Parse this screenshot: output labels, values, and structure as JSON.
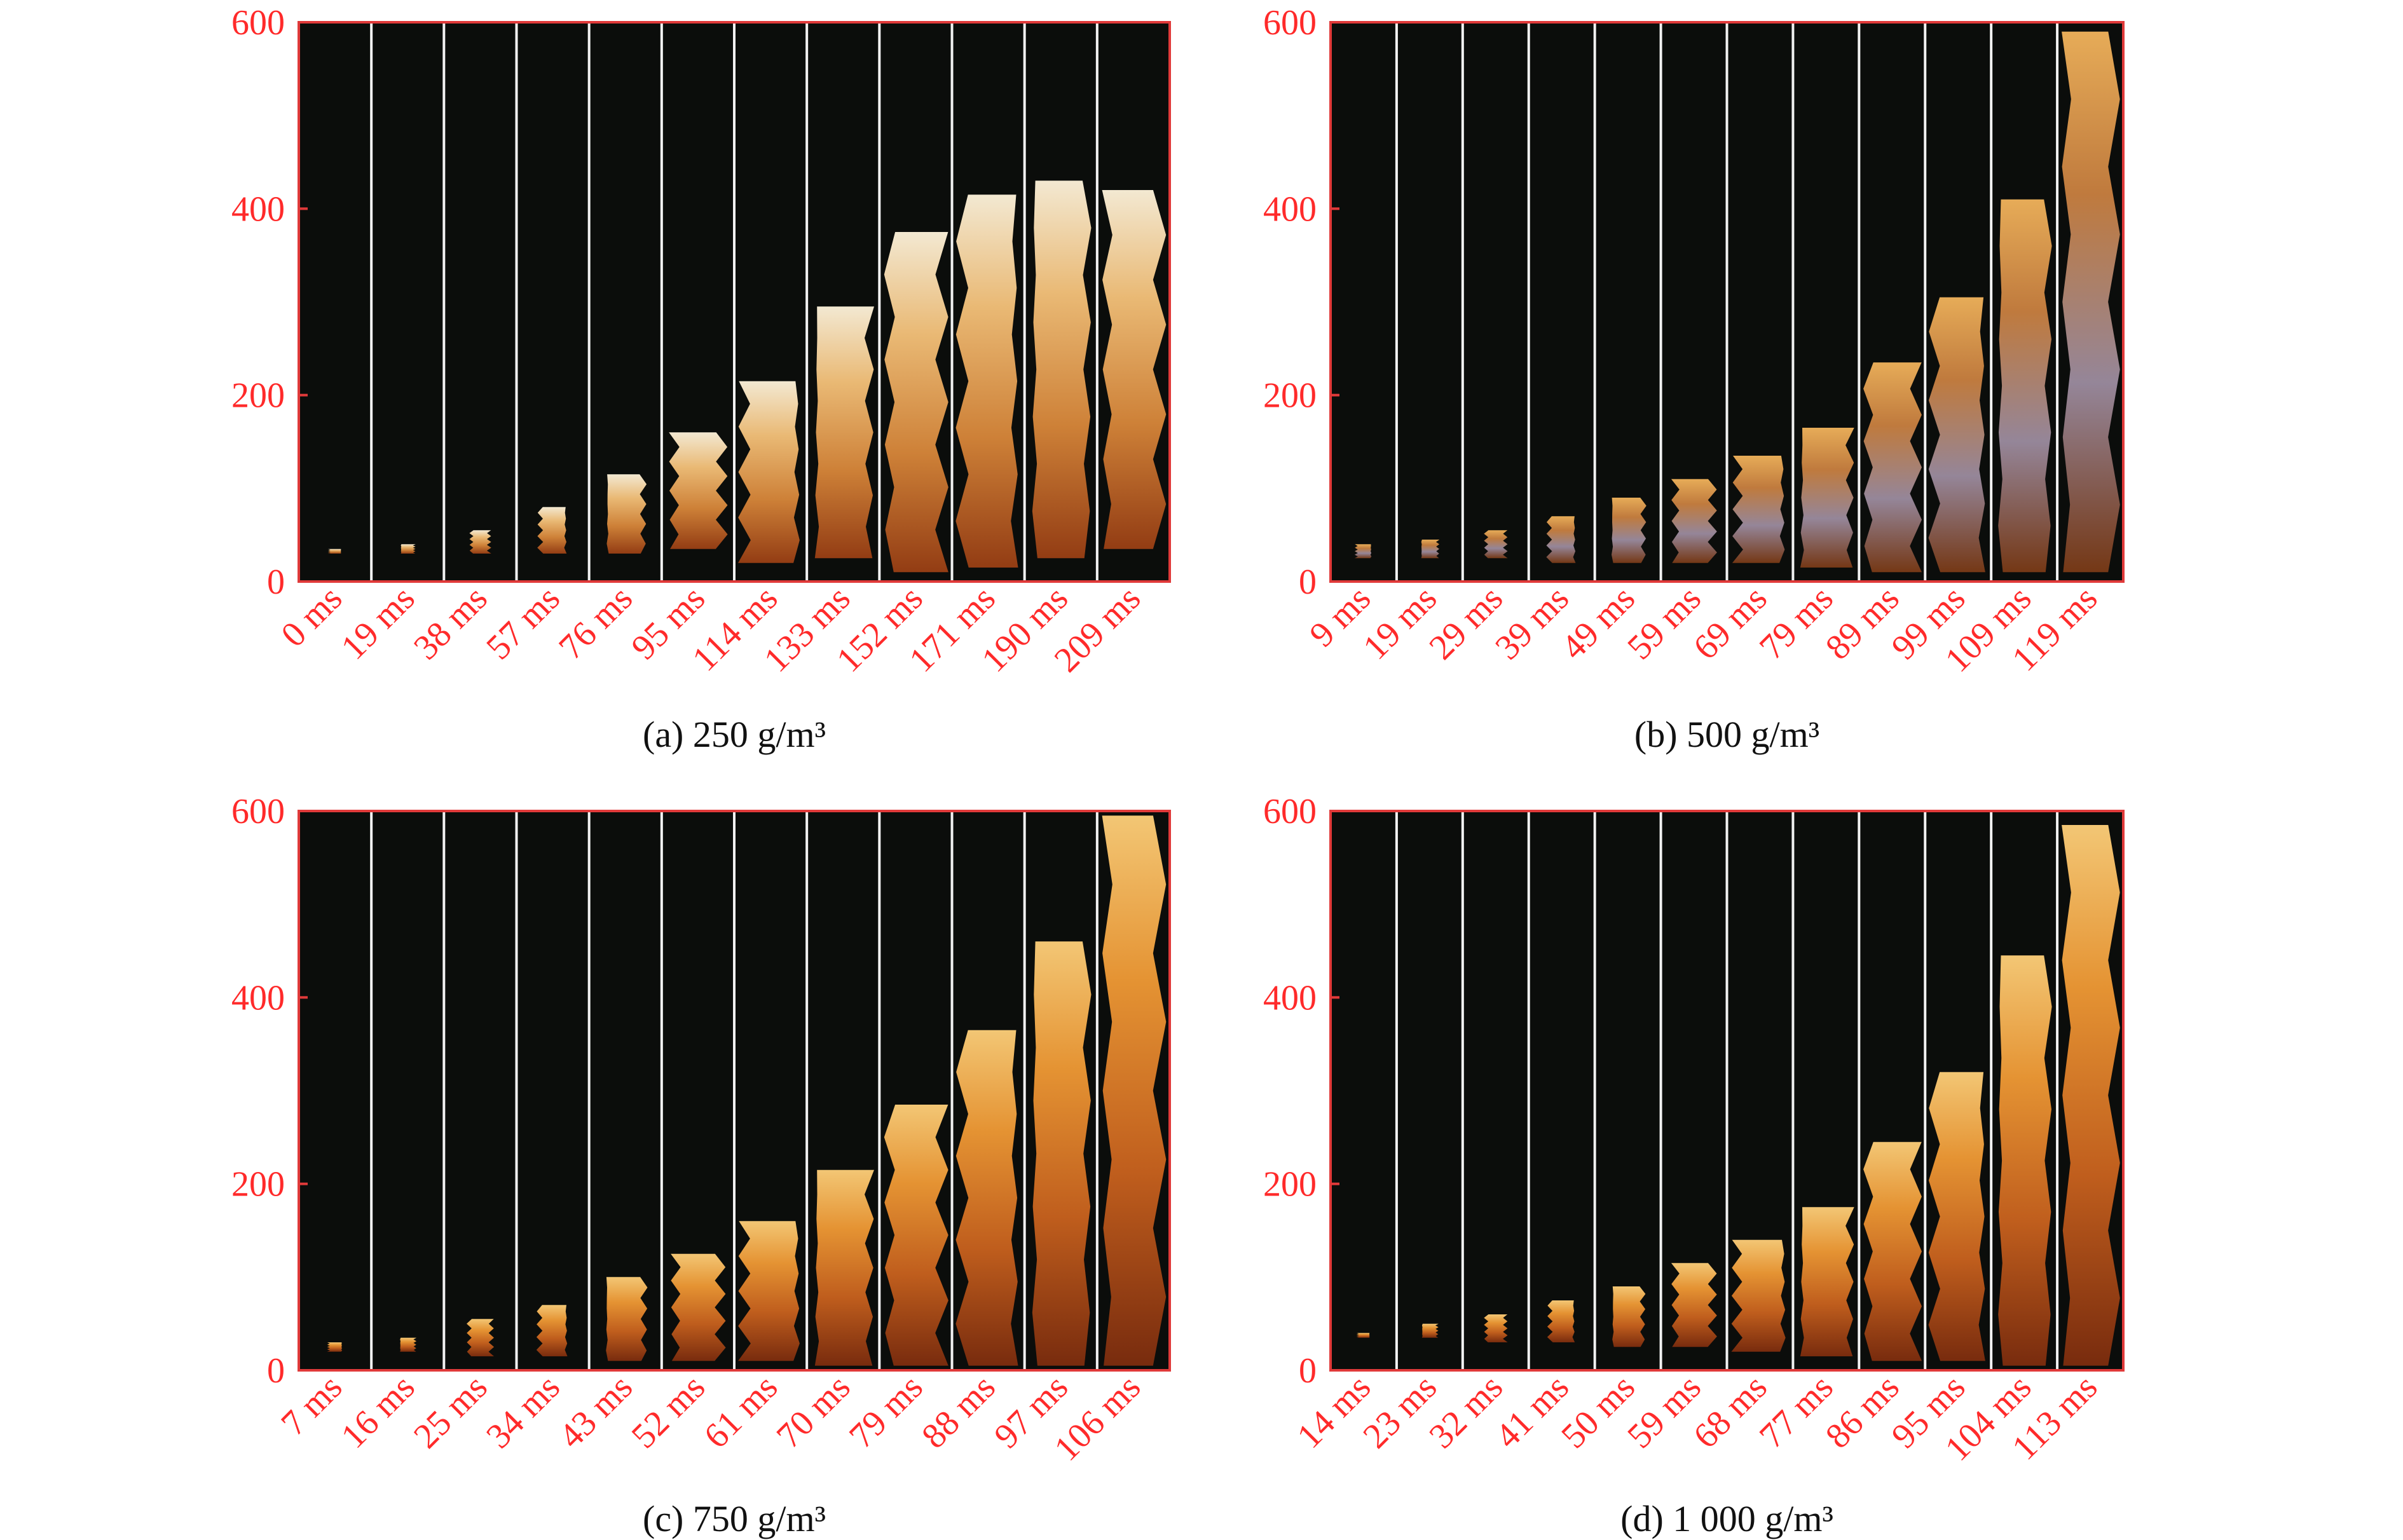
{
  "figure": {
    "tick_color": "#ff2a2a",
    "frame_color": "#e03a3a",
    "background_color": "#0b0d0b",
    "divider_color": "#f2f2f2"
  },
  "chart_data": [
    {
      "type": "image-sequence",
      "caption": "(a) 250 g/m³",
      "yticks": [
        "0",
        "200",
        "400",
        "600"
      ],
      "ylim": [
        0,
        600
      ],
      "frames": [
        "0 ms",
        "19 ms",
        "38 ms",
        "57 ms",
        "76 ms",
        "95 ms",
        "114 ms",
        "133 ms",
        "152 ms",
        "171 ms",
        "190 ms",
        "209 ms"
      ],
      "flame_bottom": [
        30,
        30,
        30,
        30,
        30,
        35,
        20,
        25,
        10,
        15,
        25,
        35
      ],
      "flame_top": [
        35,
        40,
        55,
        80,
        115,
        160,
        215,
        295,
        375,
        415,
        430,
        420
      ],
      "flame_palette": "white-hot"
    },
    {
      "type": "image-sequence",
      "caption": "(b) 500 g/m³",
      "yticks": [
        "0",
        "200",
        "400",
        "600"
      ],
      "ylim": [
        0,
        600
      ],
      "frames": [
        "9 ms",
        "19 ms",
        "29 ms",
        "39 ms",
        "49 ms",
        "59 ms",
        "69 ms",
        "79 ms",
        "89 ms",
        "99 ms",
        "109 ms",
        "119 ms"
      ],
      "flame_bottom": [
        25,
        25,
        25,
        20,
        20,
        20,
        20,
        15,
        10,
        10,
        10,
        10
      ],
      "flame_top": [
        40,
        45,
        55,
        70,
        90,
        110,
        135,
        165,
        235,
        305,
        410,
        590
      ],
      "flame_palette": "orange-grey"
    },
    {
      "type": "image-sequence",
      "caption": "(c) 750 g/m³",
      "yticks": [
        "0",
        "200",
        "400",
        "600"
      ],
      "ylim": [
        0,
        600
      ],
      "frames": [
        "7 ms",
        "16 ms",
        "25 ms",
        "34 ms",
        "43 ms",
        "52 ms",
        "61 ms",
        "70 ms",
        "79 ms",
        "88 ms",
        "97 ms",
        "106 ms"
      ],
      "flame_bottom": [
        20,
        20,
        15,
        15,
        10,
        10,
        10,
        5,
        5,
        5,
        5,
        5
      ],
      "flame_top": [
        30,
        35,
        55,
        70,
        100,
        125,
        160,
        215,
        285,
        365,
        460,
        595
      ],
      "flame_palette": "orange"
    },
    {
      "type": "image-sequence",
      "caption": "(d) 1 000 g/m³",
      "yticks": [
        "0",
        "200",
        "400",
        "600"
      ],
      "ylim": [
        0,
        600
      ],
      "frames": [
        "14 ms",
        "23 ms",
        "32 ms",
        "41 ms",
        "50 ms",
        "59 ms",
        "68 ms",
        "77 ms",
        "86 ms",
        "95 ms",
        "104 ms",
        "113 ms"
      ],
      "flame_bottom": [
        35,
        35,
        30,
        30,
        25,
        25,
        20,
        15,
        10,
        10,
        5,
        5
      ],
      "flame_top": [
        40,
        50,
        60,
        75,
        90,
        115,
        140,
        175,
        245,
        320,
        445,
        585
      ],
      "flame_palette": "orange"
    }
  ]
}
